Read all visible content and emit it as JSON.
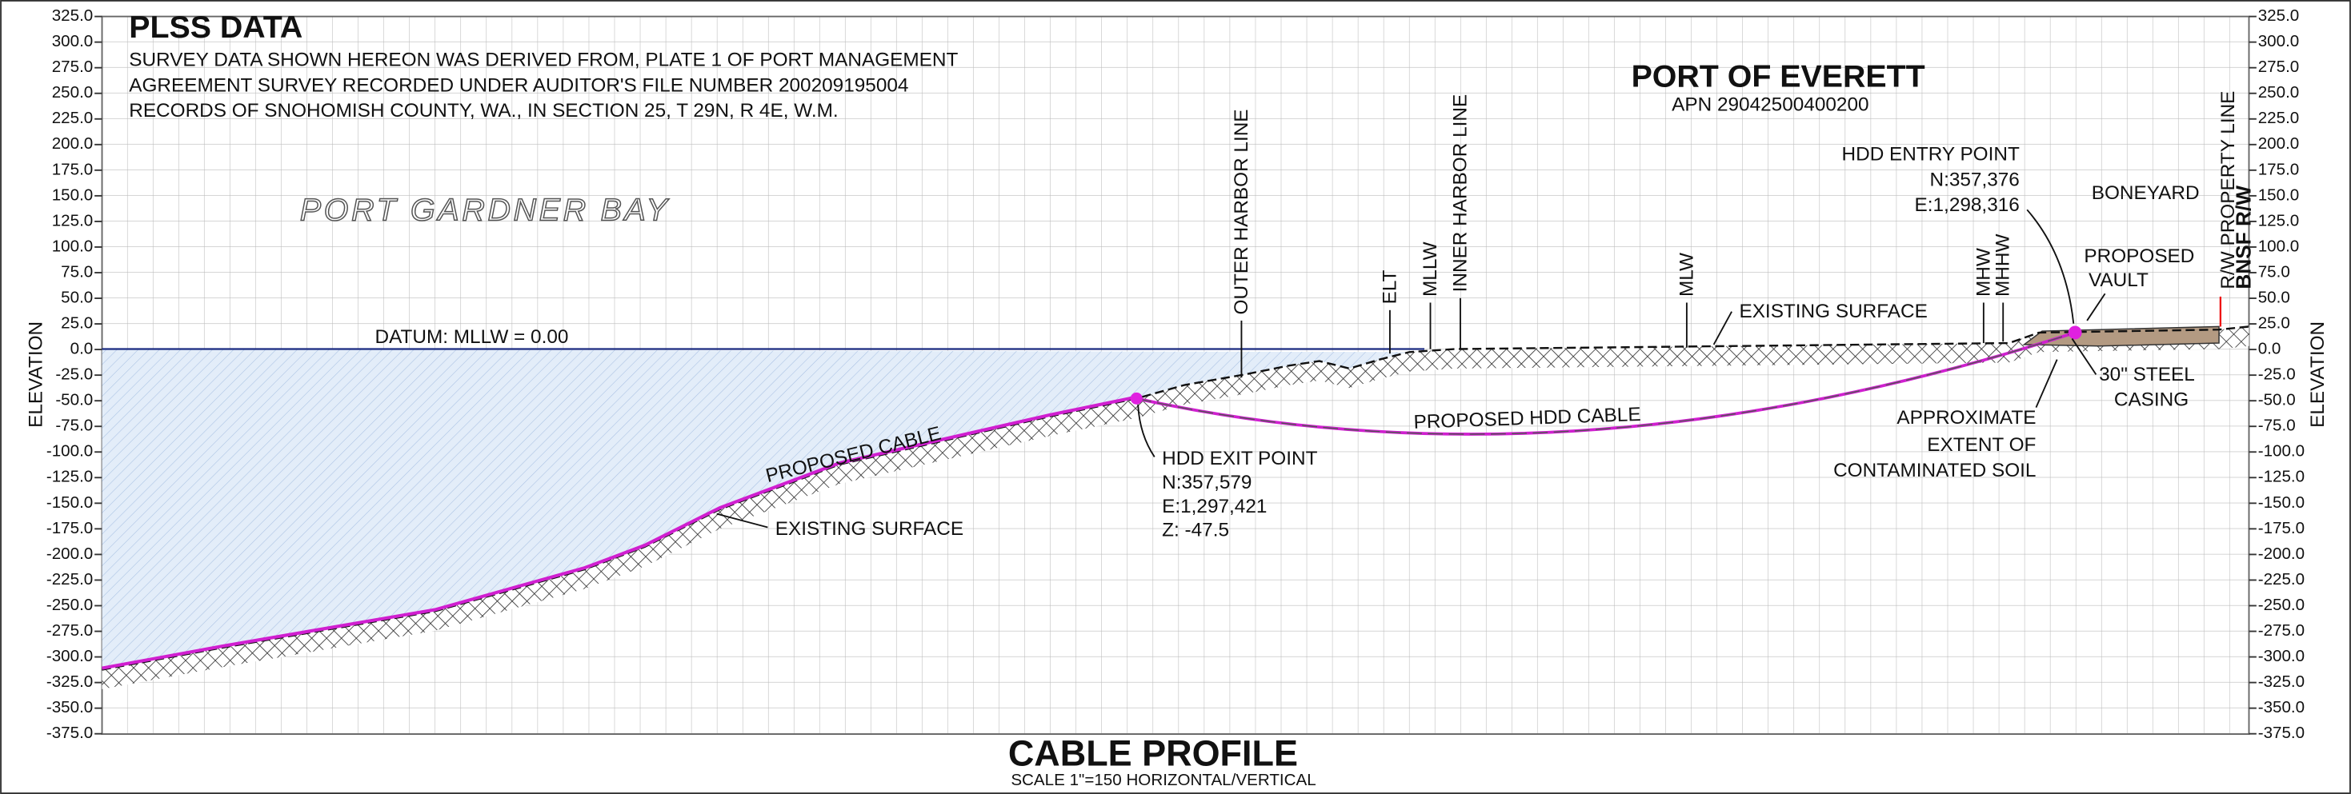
{
  "plss": {
    "title": "PLSS DATA",
    "lines": [
      "SURVEY DATA SHOWN HEREON WAS DERIVED FROM, PLATE 1 OF PORT MANAGEMENT",
      "AGREEMENT SURVEY RECORDED UNDER AUDITOR'S FILE NUMBER 200209195004",
      "RECORDS OF SNOHOMISH COUNTY, WA., IN SECTION 25, T 29N, R 4E, W.M."
    ]
  },
  "axis": {
    "title": "ELEVATION",
    "ticks": [
      "325.0",
      "300.0",
      "275.0",
      "250.0",
      "225.0",
      "200.0",
      "175.0",
      "150.0",
      "125.0",
      "100.0",
      "75.0",
      "50.0",
      "25.0",
      "0.0",
      "-25.0",
      "-50.0",
      "-75.0",
      "-100.0",
      "-125.0",
      "-150.0",
      "-175.0",
      "-200.0",
      "-225.0",
      "-250.0",
      "-275.0",
      "-300.0",
      "-325.0",
      "-350.0",
      "-375.0"
    ]
  },
  "labels": {
    "bay": "PORT GARDNER BAY",
    "datum": "DATUM: MLLW = 0.00",
    "proposed_cable": "PROPOSED CABLE",
    "existing_surface_1": "EXISTING SURFACE",
    "existing_surface_2": "EXISTING SURFACE",
    "hdd_exit": [
      "HDD EXIT POINT",
      "N:357,579",
      "E:1,297,421",
      "Z: -47.5"
    ],
    "outer_harbor": "OUTER HARBOR LINE",
    "elt": "ELT",
    "mllw": "MLLW",
    "inner_harbor": "INNER HARBOR LINE",
    "mlw": "MLW",
    "mhw": "MHW",
    "mhhw": "MHHW",
    "port": "PORT OF EVERETT",
    "apn": "APN 29042500400200",
    "hdd_entry": [
      "HDD ENTRY POINT",
      "N:357,376",
      "E:1,298,316"
    ],
    "boneyard": "BONEYARD",
    "vault": [
      "PROPOSED",
      "VAULT"
    ],
    "rw_line": "R/W PROPERTY LINE",
    "bnsf": "BNSF R/W",
    "casing": [
      "30\" STEEL",
      "CASING"
    ],
    "contaminated": [
      "APPROXIMATE",
      "EXTENT OF",
      "CONTAMINATED SOIL"
    ],
    "hdd_cable": "PROPOSED HDD CABLE"
  },
  "footer": {
    "title": "CABLE PROFILE",
    "scale": "SCALE 1\"=150 HORIZONTAL/VERTICAL"
  }
}
